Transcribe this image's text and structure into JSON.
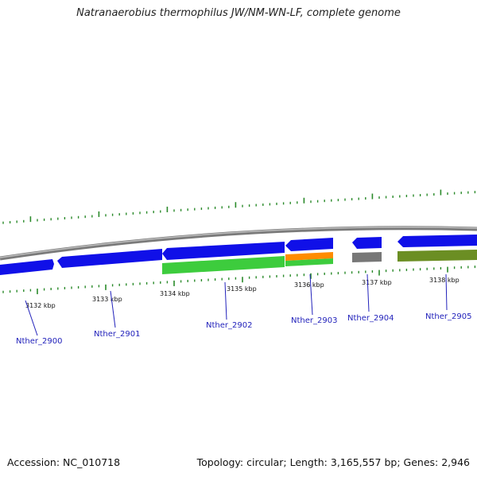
{
  "title": "Natranaerobius thermophilus JW/NM-WN-LF, complete genome",
  "footer": {
    "accession": "Accession: NC_010718",
    "summary": "Topology: circular; Length: 3,165,557 bp; Genes: 2,946"
  },
  "colors": {
    "cds": "#1010e8",
    "rna_green": "#3dcc3d",
    "orange": "#ff8c00",
    "gray": "#777777",
    "olive": "#6b8e23",
    "backbone": "#888888",
    "tick": "#2a8a2a",
    "label": "#2222bb"
  },
  "ticks": [
    {
      "label": "3132 kbp"
    },
    {
      "label": "3133 kbp"
    },
    {
      "label": "3134 kbp"
    },
    {
      "label": "3135 kbp"
    },
    {
      "label": "3136 kbp"
    },
    {
      "label": "3137 kbp"
    },
    {
      "label": "3138 kbp"
    }
  ],
  "genes": [
    {
      "name": "Nther_2900"
    },
    {
      "name": "Nther_2901"
    },
    {
      "name": "Nther_2902"
    },
    {
      "name": "Nther_2903"
    },
    {
      "name": "Nther_2904"
    },
    {
      "name": "Nther_2905"
    }
  ]
}
